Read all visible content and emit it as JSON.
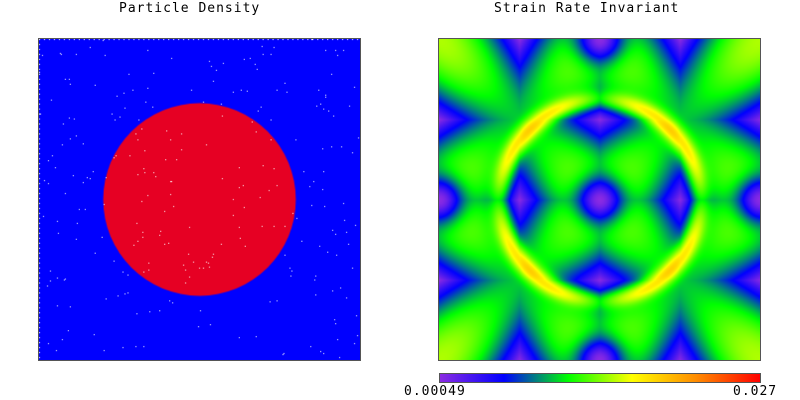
{
  "left_panel": {
    "title": "Particle Density",
    "colors": {
      "background": "#0000ff",
      "disk": "#e60023",
      "particle_speckle": "#ffffff"
    }
  },
  "right_panel": {
    "title": "Strain Rate Invariant",
    "colorbar": {
      "min_label": "0.00049",
      "max_label": "0.027",
      "colors": [
        "#8a2be2",
        "#0000ff",
        "#00ff00",
        "#ffff00",
        "#ff8c00",
        "#ff0000"
      ]
    }
  }
}
